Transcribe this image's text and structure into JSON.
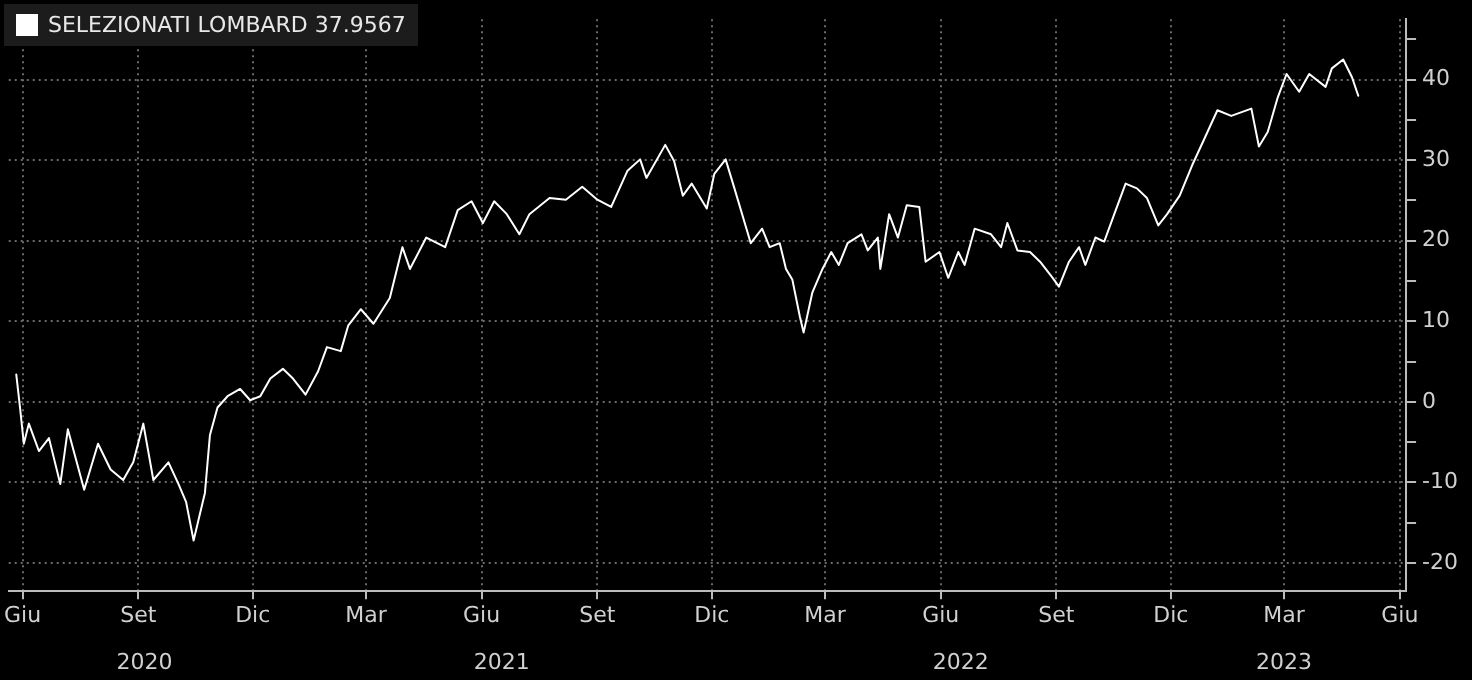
{
  "chart_data": {
    "type": "line",
    "x": [
      "2020-06-10",
      "2020-06-13",
      "2020-06-16",
      "2020-06-20",
      "2020-06-28",
      "2020-07-06",
      "2020-07-15",
      "2020-07-21",
      "2020-08-03",
      "2020-08-14",
      "2020-08-24",
      "2020-09-03",
      "2020-09-11",
      "2020-09-19",
      "2020-09-27",
      "2020-10-09",
      "2020-10-17",
      "2020-10-23",
      "2020-10-29",
      "2020-11-07",
      "2020-11-11",
      "2020-11-17",
      "2020-11-25",
      "2020-12-05",
      "2020-12-13",
      "2020-12-21",
      "2020-12-29",
      "2021-01-08",
      "2021-01-16",
      "2021-01-26",
      "2021-02-05",
      "2021-02-12",
      "2021-02-23",
      "2021-03-01",
      "2021-03-11",
      "2021-03-21",
      "2021-04-03",
      "2021-04-13",
      "2021-04-19",
      "2021-05-02",
      "2021-05-17",
      "2021-05-27",
      "2021-06-07",
      "2021-06-16",
      "2021-06-25",
      "2021-07-05",
      "2021-07-15",
      "2021-07-23",
      "2021-08-08",
      "2021-08-21",
      "2021-09-03",
      "2021-09-15",
      "2021-09-26",
      "2021-10-09",
      "2021-10-19",
      "2021-10-24",
      "2021-11-08",
      "2021-11-15",
      "2021-11-22",
      "2021-11-29",
      "2021-12-11",
      "2021-12-17",
      "2021-12-26",
      "2022-01-02",
      "2022-01-15",
      "2022-01-24",
      "2022-01-30",
      "2022-02-07",
      "2022-02-12",
      "2022-02-17",
      "2022-02-23",
      "2022-02-26",
      "2022-03-05",
      "2022-03-13",
      "2022-03-20",
      "2022-03-26",
      "2022-04-02",
      "2022-04-13",
      "2022-04-18",
      "2022-04-26",
      "2022-04-28",
      "2022-05-05",
      "2022-05-12",
      "2022-05-19",
      "2022-05-29",
      "2022-06-03",
      "2022-06-14",
      "2022-06-21",
      "2022-06-29",
      "2022-07-04",
      "2022-07-12",
      "2022-07-25",
      "2022-08-02",
      "2022-08-07",
      "2022-08-15",
      "2022-08-25",
      "2022-09-02",
      "2022-09-12",
      "2022-09-17",
      "2022-09-25",
      "2022-10-03",
      "2022-10-08",
      "2022-10-16",
      "2022-10-23",
      "2022-10-31",
      "2022-11-09",
      "2022-11-18",
      "2022-11-26",
      "2022-12-05",
      "2022-12-12",
      "2022-12-22",
      "2023-01-01",
      "2023-01-09",
      "2023-01-21",
      "2023-02-01",
      "2023-02-17",
      "2023-02-23",
      "2023-03-02",
      "2023-03-10",
      "2023-03-17",
      "2023-03-27",
      "2023-04-04",
      "2023-04-17",
      "2023-04-22",
      "2023-05-01",
      "2023-05-08",
      "2023-05-13"
    ],
    "series": [
      {
        "name": "SELEZIONATI LOMBARD 37.9567",
        "color": "#ffffff",
        "values": [
          3.4,
          -0.7,
          -5.2,
          -2.7,
          -6.1,
          -4.5,
          -10.2,
          -3.4,
          -10.9,
          -5.2,
          -8.4,
          -9.7,
          -7.5,
          -2.7,
          -9.7,
          -7.5,
          -10.2,
          -12.4,
          -17.2,
          -11.3,
          -4.1,
          -0.7,
          0.7,
          1.6,
          0.2,
          0.7,
          2.9,
          4.1,
          2.9,
          0.9,
          3.8,
          6.8,
          6.3,
          9.5,
          11.5,
          9.7,
          12.9,
          19.2,
          16.5,
          20.4,
          19.2,
          23.8,
          24.9,
          22.2,
          24.9,
          23.3,
          20.8,
          23.3,
          25.3,
          25.1,
          26.7,
          25.1,
          24.2,
          28.7,
          30.1,
          27.8,
          31.9,
          29.9,
          25.6,
          27.1,
          24.0,
          28.3,
          30.1,
          26.5,
          19.7,
          21.5,
          19.2,
          19.7,
          16.5,
          15.2,
          10.6,
          8.6,
          13.6,
          16.5,
          18.6,
          17.0,
          19.7,
          20.8,
          18.8,
          20.4,
          16.5,
          23.3,
          20.4,
          24.4,
          24.2,
          17.4,
          18.6,
          15.4,
          18.6,
          17.0,
          21.5,
          20.8,
          19.2,
          22.2,
          18.8,
          18.6,
          17.4,
          15.4,
          14.3,
          17.4,
          19.2,
          17.0,
          20.4,
          19.9,
          23.3,
          27.1,
          26.5,
          25.3,
          21.9,
          23.3,
          25.6,
          29.4,
          32.1,
          36.2,
          35.5,
          36.4,
          31.7,
          33.5,
          37.8,
          40.7,
          38.5,
          40.7,
          39.1,
          41.4,
          42.5,
          40.3,
          38.0
        ]
      }
    ],
    "xlim": [
      "2020-06-04",
      "2023-06-20"
    ],
    "xticks": [
      {
        "value": "2020-06-15",
        "label": "Giu"
      },
      {
        "value": "2020-09-15",
        "label": "Set"
      },
      {
        "value": "2020-12-15",
        "label": "Dic"
      },
      {
        "value": "2021-03-15",
        "label": "Mar"
      },
      {
        "value": "2021-06-15",
        "label": "Giu"
      },
      {
        "value": "2021-09-15",
        "label": "Set"
      },
      {
        "value": "2021-12-15",
        "label": "Dic"
      },
      {
        "value": "2022-03-15",
        "label": "Mar"
      },
      {
        "value": "2022-06-15",
        "label": "Giu"
      },
      {
        "value": "2022-09-15",
        "label": "Set"
      },
      {
        "value": "2022-12-15",
        "label": "Dic"
      },
      {
        "value": "2023-03-15",
        "label": "Mar"
      },
      {
        "value": "2023-06-15",
        "label": "Giu"
      }
    ],
    "x2lim": [
      "2020-06-04",
      "2023-06-20"
    ],
    "x2ticks": [
      {
        "value": "2020-09-20",
        "label": "2020"
      },
      {
        "value": "2021-07-01",
        "label": "2021"
      },
      {
        "value": "2022-07-01",
        "label": "2022"
      },
      {
        "value": "2023-03-15",
        "label": "2023"
      }
    ],
    "ylim": [
      -23.5,
      47.5
    ],
    "yticks": [
      {
        "value": -20,
        "label": "-20"
      },
      {
        "value": -15,
        "label": null
      },
      {
        "value": -10,
        "label": "-10"
      },
      {
        "value": -5,
        "label": null
      },
      0,
      {
        "value": 5,
        "label": null
      },
      10,
      {
        "value": 15,
        "label": null
      },
      20,
      {
        "value": 25,
        "label": null
      },
      30,
      {
        "value": 35,
        "label": null
      },
      40,
      {
        "value": 45,
        "label": null
      }
    ],
    "grid": true,
    "legend": "top left",
    "marker": "none",
    "line_style": "solid"
  }
}
